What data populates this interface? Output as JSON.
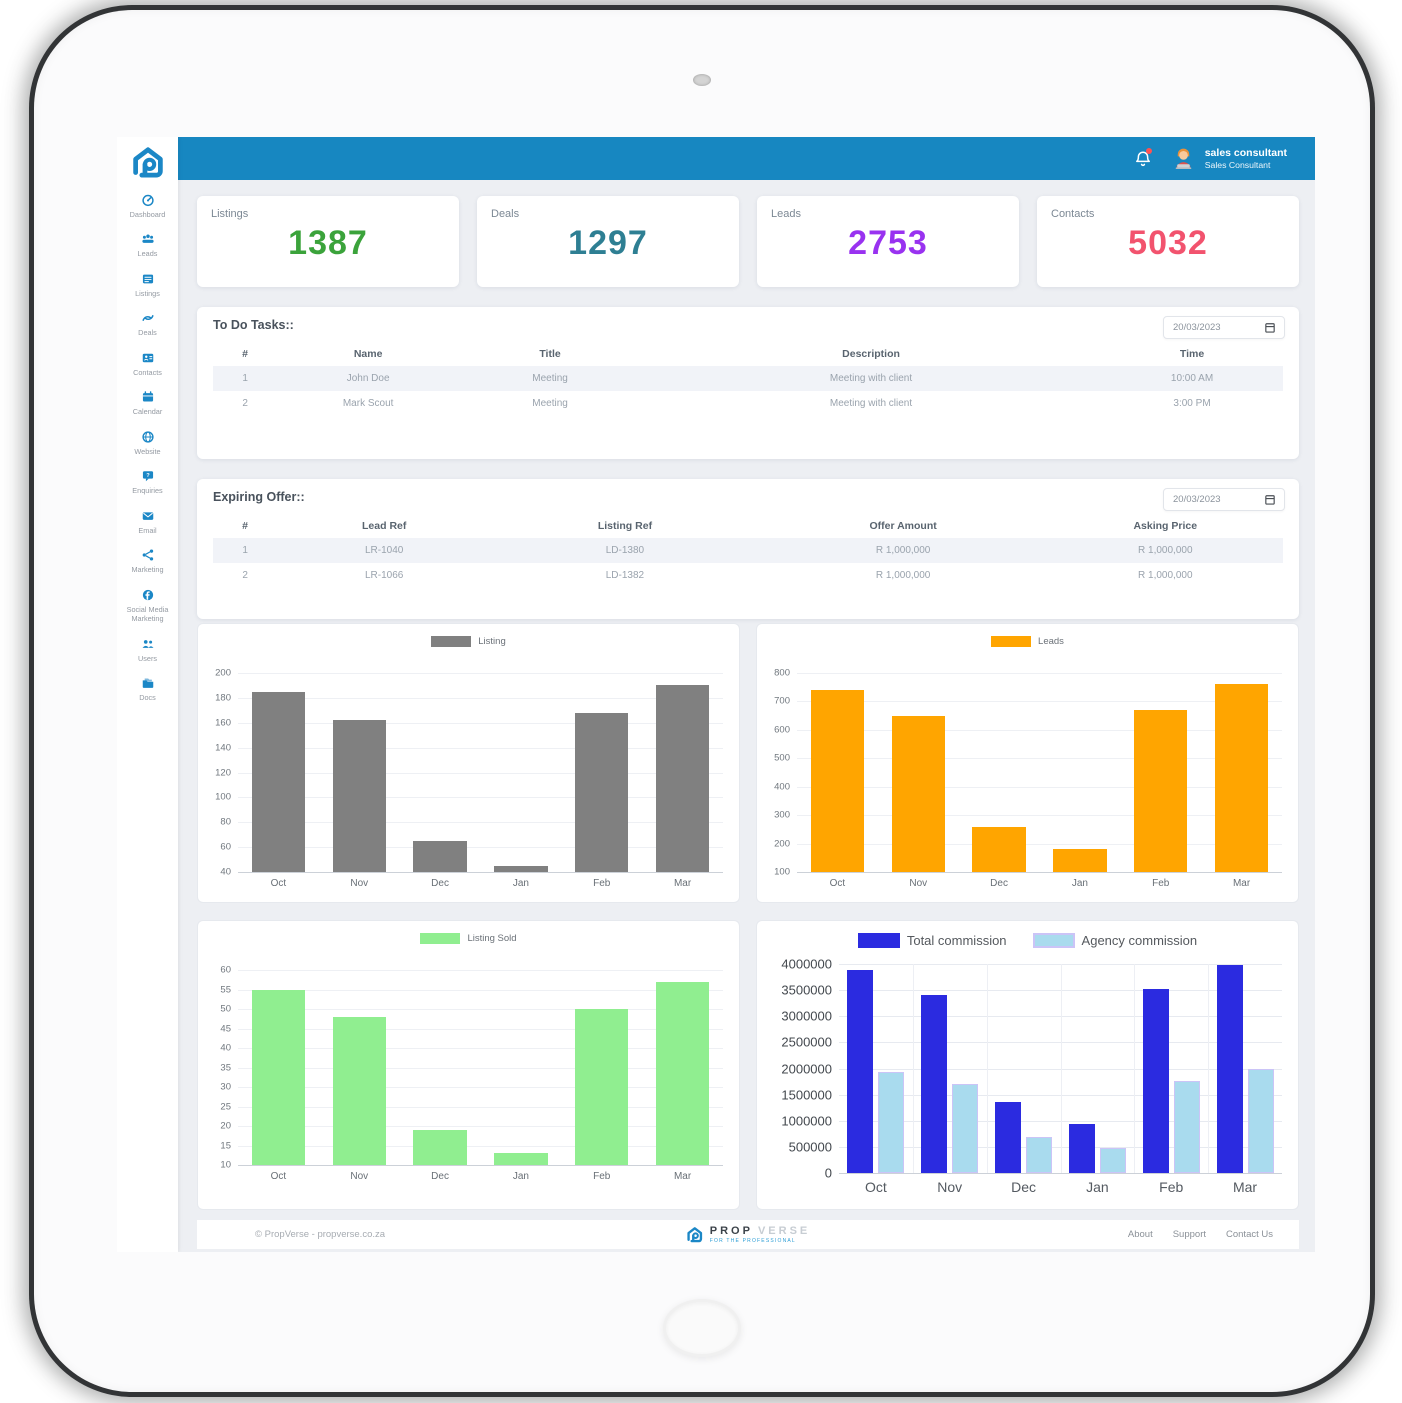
{
  "colors": {
    "header_blue": "#1787c1",
    "sidebar_icon_blue": "#1b87c6",
    "stripe_row": "#f1f3f8"
  },
  "header": {
    "user_name": "sales consultant",
    "user_role": "Sales Consultant"
  },
  "sidebar": {
    "items": [
      {
        "label": "Dashboard",
        "icon": "gauge-icon"
      },
      {
        "label": "Leads",
        "icon": "leads-icon"
      },
      {
        "label": "Listings",
        "icon": "listings-icon"
      },
      {
        "label": "Deals",
        "icon": "deals-icon"
      },
      {
        "label": "Contacts",
        "icon": "contacts-icon"
      },
      {
        "label": "Calendar",
        "icon": "calendar-icon"
      },
      {
        "label": "Website",
        "icon": "globe-icon"
      },
      {
        "label": "Enquiries",
        "icon": "enquiries-icon"
      },
      {
        "label": "Email",
        "icon": "email-icon"
      },
      {
        "label": "Marketing",
        "icon": "share-icon"
      },
      {
        "label": "Social Media Marketing",
        "icon": "facebook-icon"
      },
      {
        "label": "Users",
        "icon": "users-icon"
      },
      {
        "label": "Docs",
        "icon": "docs-icon"
      }
    ]
  },
  "stats": [
    {
      "label": "Listings",
      "value": "1387",
      "color": "#3ba33b"
    },
    {
      "label": "Deals",
      "value": "1297",
      "color": "#2e7f93"
    },
    {
      "label": "Leads",
      "value": "2753",
      "color": "#9932f0"
    },
    {
      "label": "Contacts",
      "value": "5032",
      "color": "#f2536e"
    }
  ],
  "todo": {
    "title": "To Do Tasks::",
    "date": "20/03/2023",
    "columns": [
      "#",
      "Name",
      "Title",
      "Description",
      "Time"
    ],
    "rows": [
      [
        "1",
        "John Doe",
        "Meeting",
        "Meeting with client",
        "10:00 AM"
      ],
      [
        "2",
        "Mark Scout",
        "Meeting",
        "Meeting with client",
        "3:00 PM"
      ]
    ]
  },
  "expiring": {
    "title": "Expiring Offer::",
    "date": "20/03/2023",
    "columns": [
      "#",
      "Lead Ref",
      "Listing Ref",
      "Offer Amount",
      "Asking Price"
    ],
    "rows": [
      [
        "1",
        "LR-1040",
        "LD-1380",
        "R 1,000,000",
        "R 1,000,000"
      ],
      [
        "2",
        "LR-1066",
        "LD-1382",
        "R 1,000,000",
        "R 1,000,000"
      ]
    ]
  },
  "chart_data": [
    {
      "type": "bar",
      "categories": [
        "Oct",
        "Nov",
        "Dec",
        "Jan",
        "Feb",
        "Mar"
      ],
      "series": [
        {
          "name": "Listing",
          "color": "#808080",
          "values": [
            185,
            162,
            65,
            45,
            168,
            190
          ]
        }
      ],
      "ylim": [
        40,
        200
      ],
      "ytick_step": 20,
      "grid": true,
      "legend_position": "top"
    },
    {
      "type": "bar",
      "categories": [
        "Oct",
        "Nov",
        "Dec",
        "Jan",
        "Feb",
        "Mar"
      ],
      "series": [
        {
          "name": "Leads",
          "color": "#ffa500",
          "values": [
            740,
            650,
            260,
            180,
            670,
            760
          ]
        }
      ],
      "ylim": [
        100,
        800
      ],
      "ytick_step": 100,
      "grid": true,
      "legend_position": "top"
    },
    {
      "type": "bar",
      "categories": [
        "Oct",
        "Nov",
        "Dec",
        "Jan",
        "Feb",
        "Mar"
      ],
      "series": [
        {
          "name": "Listing Sold",
          "color": "#90ee90",
          "values": [
            55,
            48,
            19,
            13,
            50,
            57
          ]
        }
      ],
      "ylim": [
        10,
        60
      ],
      "ytick_step": 5,
      "grid": true,
      "legend_position": "top"
    },
    {
      "type": "bar",
      "categories": [
        "Oct",
        "Nov",
        "Dec",
        "Jan",
        "Feb",
        "Mar"
      ],
      "series": [
        {
          "name": "Total commission",
          "color": "#2b2be0",
          "values": [
            3880000,
            3400000,
            1350000,
            940000,
            3520000,
            3980000
          ]
        },
        {
          "name": "Agency commission",
          "color": "#a9dbee",
          "border": "#cbc4f7",
          "values": [
            1930000,
            1700000,
            680000,
            470000,
            1760000,
            1990000
          ]
        }
      ],
      "ylim": [
        0,
        4000000
      ],
      "ytick_step": 500000,
      "grid": true,
      "vgrid": true,
      "tick_font": "large",
      "legend_position": "top"
    }
  ],
  "footer": {
    "copyright": "© PropVerse - propverse.co.za",
    "logo_prop": "PROP",
    "logo_verse": "VERSE",
    "logo_tagline": "FOR THE PROFESSIONAL",
    "links": [
      "About",
      "Support",
      "Contact Us"
    ]
  }
}
